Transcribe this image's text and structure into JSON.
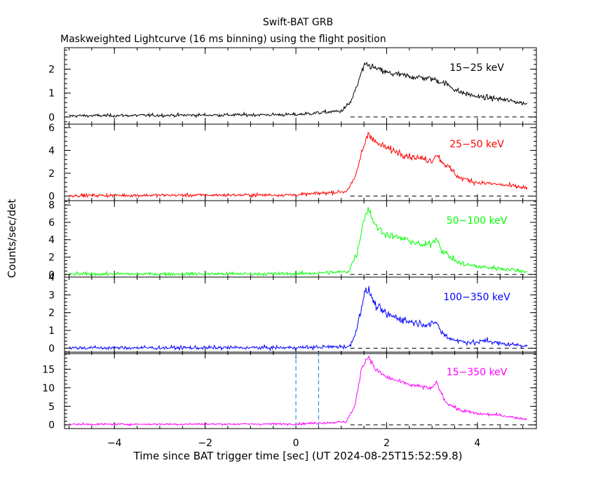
{
  "chart_data": {
    "type": "line",
    "title": "Swift-BAT GRB",
    "subtitle": "Maskweighted Lightcurve (16 ms binning) using the flight position",
    "xlabel": "Time since BAT trigger time [sec] (UT 2024-08-25T15:52:59.8)",
    "ylabel": "Counts/sec/det",
    "xlim": [
      -5.1,
      5.3
    ],
    "x_ticks": [
      "−4",
      "−2",
      "0",
      "2",
      "4"
    ],
    "x_tick_values": [
      -4,
      -2,
      0,
      2,
      4
    ],
    "bin_seconds": 0.016,
    "marker_lines": [
      0.0,
      0.5
    ],
    "marker_color": "#1f77c8",
    "panels": [
      {
        "name": "15−25 keV",
        "color": "#000000",
        "ylim": [
          -0.3,
          2.9
        ],
        "y_ticks": [
          "0",
          "1",
          "2"
        ],
        "y_tick_values": [
          0,
          1,
          2
        ],
        "profile_t": [
          -5.0,
          0.0,
          1.0,
          1.2,
          1.35,
          1.45,
          1.55,
          1.8,
          2.0,
          2.5,
          3.0,
          3.3,
          3.6,
          4.0,
          4.5,
          5.1
        ],
        "profile_y": [
          0.05,
          0.1,
          0.25,
          0.6,
          1.3,
          1.9,
          2.2,
          2.0,
          1.85,
          1.7,
          1.6,
          1.4,
          1.05,
          0.85,
          0.75,
          0.55
        ],
        "noise": 0.12
      },
      {
        "name": "25−50 keV",
        "color": "#ff0000",
        "ylim": [
          -0.4,
          6.3
        ],
        "y_ticks": [
          "0",
          "2",
          "4",
          "6"
        ],
        "y_tick_values": [
          0,
          2,
          4,
          6
        ],
        "profile_t": [
          -5.0,
          0.0,
          1.1,
          1.3,
          1.45,
          1.6,
          1.75,
          2.0,
          2.5,
          3.0,
          3.1,
          3.2,
          3.4,
          3.6,
          4.0,
          4.5,
          5.1
        ],
        "profile_y": [
          0.05,
          0.1,
          0.4,
          1.5,
          3.8,
          5.6,
          4.7,
          4.2,
          3.5,
          3.1,
          3.7,
          3.1,
          2.4,
          1.6,
          1.2,
          1.0,
          0.7
        ],
        "noise": 0.28
      },
      {
        "name": "50−100 keV",
        "color": "#00ff00",
        "ylim": [
          -0.3,
          8.5
        ],
        "y_ticks": [
          "0",
          "2",
          "4",
          "6",
          "8"
        ],
        "y_tick_values": [
          0,
          2,
          4,
          6,
          8
        ],
        "profile_t": [
          -5.0,
          0.0,
          1.15,
          1.35,
          1.5,
          1.6,
          1.75,
          2.0,
          2.5,
          2.8,
          3.0,
          3.1,
          3.2,
          3.4,
          3.6,
          4.0,
          4.5,
          5.1
        ],
        "profile_y": [
          0.05,
          0.08,
          0.3,
          2.5,
          6.5,
          7.6,
          5.6,
          4.6,
          3.9,
          3.3,
          3.6,
          4.3,
          2.9,
          2.0,
          1.3,
          0.9,
          0.7,
          0.35
        ],
        "noise": 0.4
      },
      {
        "name": "100−350 keV",
        "color": "#0000ff",
        "ylim": [
          -0.3,
          4.0
        ],
        "y_ticks": [
          "0",
          "1",
          "2",
          "3",
          "4"
        ],
        "y_tick_values": [
          0,
          1,
          2,
          3,
          4
        ],
        "profile_t": [
          -5.0,
          0.0,
          1.2,
          1.35,
          1.5,
          1.6,
          1.75,
          2.0,
          2.5,
          3.0,
          3.1,
          3.2,
          3.35,
          3.6,
          4.0,
          4.2,
          4.5,
          5.1
        ],
        "profile_y": [
          0.02,
          0.03,
          0.1,
          1.2,
          3.0,
          3.3,
          2.4,
          1.9,
          1.5,
          1.3,
          1.5,
          0.9,
          0.6,
          0.4,
          0.3,
          0.45,
          0.25,
          0.15
        ],
        "noise": 0.22
      },
      {
        "name": "15−350 keV",
        "color": "#ff00ff",
        "ylim": [
          -1.0,
          19.6
        ],
        "y_ticks": [
          "0",
          "5",
          "10",
          "15"
        ],
        "y_tick_values": [
          0,
          5,
          10,
          15
        ],
        "profile_t": [
          -5.0,
          0.0,
          1.1,
          1.3,
          1.45,
          1.6,
          1.75,
          2.0,
          2.5,
          3.0,
          3.1,
          3.15,
          3.3,
          3.6,
          4.0,
          4.5,
          5.1
        ],
        "profile_y": [
          0.15,
          0.25,
          0.8,
          5.0,
          15.5,
          18.5,
          15.0,
          12.8,
          10.8,
          9.8,
          11.5,
          10.0,
          6.2,
          4.0,
          3.0,
          2.6,
          1.5
        ],
        "noise": 0.55
      }
    ]
  }
}
